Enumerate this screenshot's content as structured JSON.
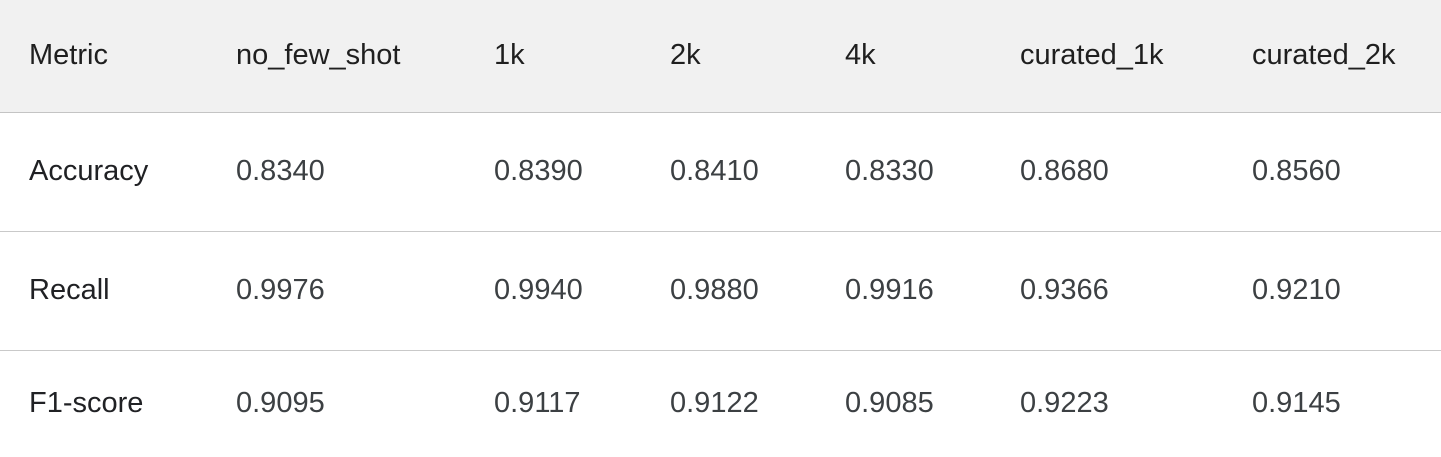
{
  "table": {
    "headers": [
      "Metric",
      "no_few_shot",
      "1k",
      "2k",
      "4k",
      "curated_1k",
      "curated_2k"
    ],
    "rows": [
      [
        "Accuracy",
        "0.8340",
        "0.8390",
        "0.8410",
        "0.8330",
        "0.8680",
        "0.8560"
      ],
      [
        "Recall",
        "0.9976",
        "0.9940",
        "0.9880",
        "0.9916",
        "0.9366",
        "0.9210"
      ],
      [
        "F1-score",
        "0.9095",
        "0.9117",
        "0.9122",
        "0.9085",
        "0.9223",
        "0.9145"
      ]
    ]
  }
}
